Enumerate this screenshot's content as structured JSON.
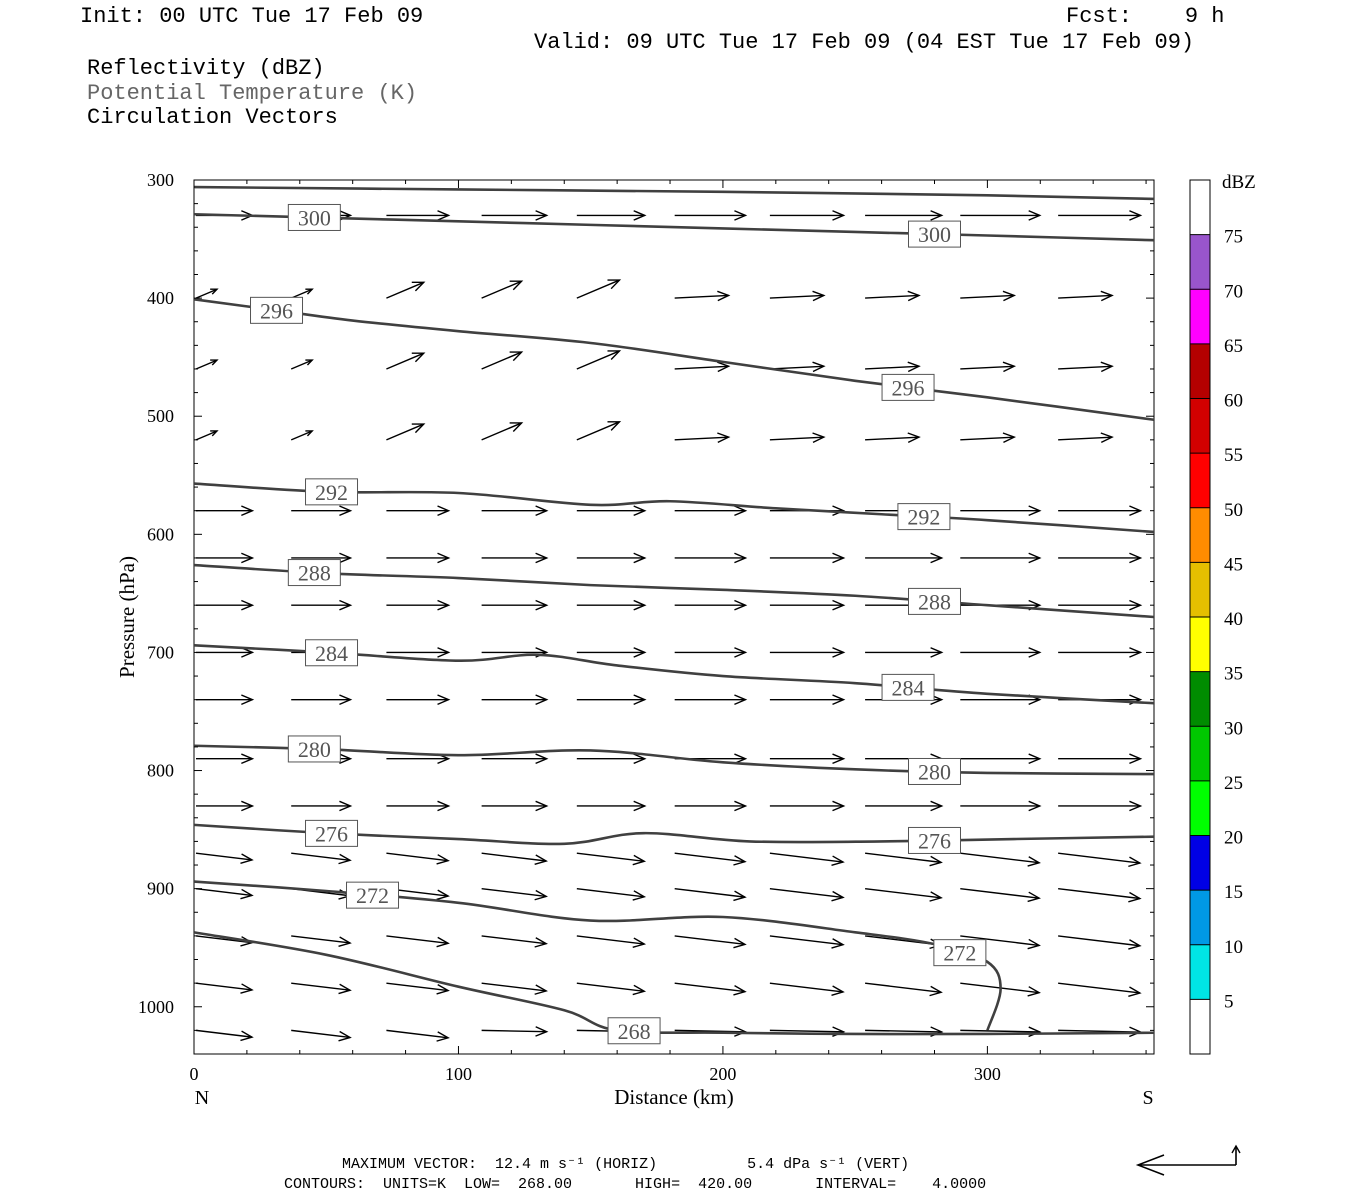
{
  "header": {
    "init": "Init: 00 UTC Tue 17 Feb 09",
    "fcst": "Fcst:    9 h",
    "valid": "Valid: 09 UTC Tue 17 Feb 09 (04 EST Tue 17 Feb 09)",
    "fields": [
      "Reflectivity (dBZ)",
      "Potential Temperature (K)",
      "Circulation Vectors"
    ]
  },
  "chart_data": {
    "type": "line",
    "xlabel": "Distance (km)",
    "ylabel": "Pressure (hPa)",
    "xlim": [
      0,
      363
    ],
    "ylim": [
      300,
      1040
    ],
    "y_inverted": true,
    "x_ticks": [
      0,
      100,
      200,
      300
    ],
    "y_ticks": [
      300,
      400,
      500,
      600,
      700,
      800,
      900,
      1000
    ],
    "x_end_labels": {
      "left": "N",
      "right": "S"
    },
    "contours": [
      {
        "value": 304,
        "label": "",
        "points": [
          [
            0,
            306
          ],
          [
            100,
            308
          ],
          [
            200,
            310
          ],
          [
            300,
            313
          ],
          [
            363,
            316
          ]
        ]
      },
      {
        "value": 300,
        "label": "300",
        "points": [
          [
            0,
            329
          ],
          [
            50,
            332
          ],
          [
            100,
            335
          ],
          [
            150,
            338
          ],
          [
            200,
            341
          ],
          [
            250,
            344
          ],
          [
            300,
            347
          ],
          [
            363,
            351
          ]
        ]
      },
      {
        "value": 296,
        "label": "296",
        "points": [
          [
            0,
            401
          ],
          [
            30,
            410
          ],
          [
            60,
            419
          ],
          [
            100,
            428
          ],
          [
            150,
            438
          ],
          [
            200,
            454
          ],
          [
            250,
            470
          ],
          [
            300,
            484
          ],
          [
            363,
            503
          ]
        ]
      },
      {
        "value": 292,
        "label": "292",
        "points": [
          [
            0,
            557
          ],
          [
            50,
            564
          ],
          [
            100,
            565
          ],
          [
            150,
            575
          ],
          [
            180,
            572
          ],
          [
            220,
            578
          ],
          [
            260,
            583
          ],
          [
            300,
            588
          ],
          [
            363,
            598
          ]
        ]
      },
      {
        "value": 288,
        "label": "288",
        "points": [
          [
            0,
            626
          ],
          [
            50,
            633
          ],
          [
            100,
            637
          ],
          [
            150,
            643
          ],
          [
            200,
            647
          ],
          [
            250,
            652
          ],
          [
            300,
            660
          ],
          [
            363,
            670
          ]
        ]
      },
      {
        "value": 284,
        "label": "284",
        "points": [
          [
            0,
            694
          ],
          [
            50,
            700
          ],
          [
            100,
            707
          ],
          [
            130,
            702
          ],
          [
            160,
            711
          ],
          [
            200,
            720
          ],
          [
            250,
            726
          ],
          [
            300,
            735
          ],
          [
            363,
            743
          ]
        ]
      },
      {
        "value": 280,
        "label": "280",
        "points": [
          [
            0,
            779
          ],
          [
            50,
            782
          ],
          [
            100,
            787
          ],
          [
            150,
            783
          ],
          [
            200,
            793
          ],
          [
            250,
            799
          ],
          [
            300,
            802
          ],
          [
            363,
            803
          ]
        ]
      },
      {
        "value": 276,
        "label": "276",
        "points": [
          [
            0,
            846
          ],
          [
            50,
            853
          ],
          [
            100,
            858
          ],
          [
            140,
            862
          ],
          [
            170,
            853
          ],
          [
            210,
            860
          ],
          [
            260,
            860
          ],
          [
            310,
            858
          ],
          [
            363,
            856
          ]
        ]
      },
      {
        "value": 272,
        "label": "272",
        "points": [
          [
            0,
            894
          ],
          [
            50,
            902
          ],
          [
            100,
            912
          ],
          [
            150,
            927
          ],
          [
            200,
            924
          ],
          [
            250,
            937
          ],
          [
            280,
            947
          ],
          [
            300,
            962
          ],
          [
            305,
            985
          ],
          [
            300,
            1020
          ]
        ]
      },
      {
        "value": 268,
        "label": "268",
        "points": [
          [
            0,
            937
          ],
          [
            50,
            956
          ],
          [
            100,
            983
          ],
          [
            140,
            1003
          ],
          [
            160,
            1020
          ],
          [
            200,
            1022
          ],
          [
            250,
            1023
          ],
          [
            300,
            1023
          ],
          [
            363,
            1022
          ]
        ]
      }
    ],
    "colorbar": {
      "title": "dBZ",
      "ticks": [
        5,
        10,
        15,
        20,
        25,
        30,
        35,
        40,
        45,
        50,
        55,
        60,
        65,
        70,
        75
      ],
      "colors": [
        "#00e5e5",
        "#0099e5",
        "#0000e5",
        "#00ff00",
        "#00c800",
        "#008c00",
        "#ffff00",
        "#e5bf00",
        "#ff8c00",
        "#ff0000",
        "#d20000",
        "#b40000",
        "#ff00ff",
        "#9955cc"
      ]
    },
    "vectors_note": "Circulation vectors point mostly toward the south (right), strengthening with height, weaker near 400-500 hPa on the north side"
  },
  "footer": {
    "line1": "MAXIMUM VECTOR:  12.4 m s⁻¹ (HORIZ)          5.4 dPa s⁻¹ (VERT)",
    "line2": "CONTOURS:  UNITS=K  LOW=  268.00       HIGH=  420.00       INTERVAL=    4.0000"
  }
}
